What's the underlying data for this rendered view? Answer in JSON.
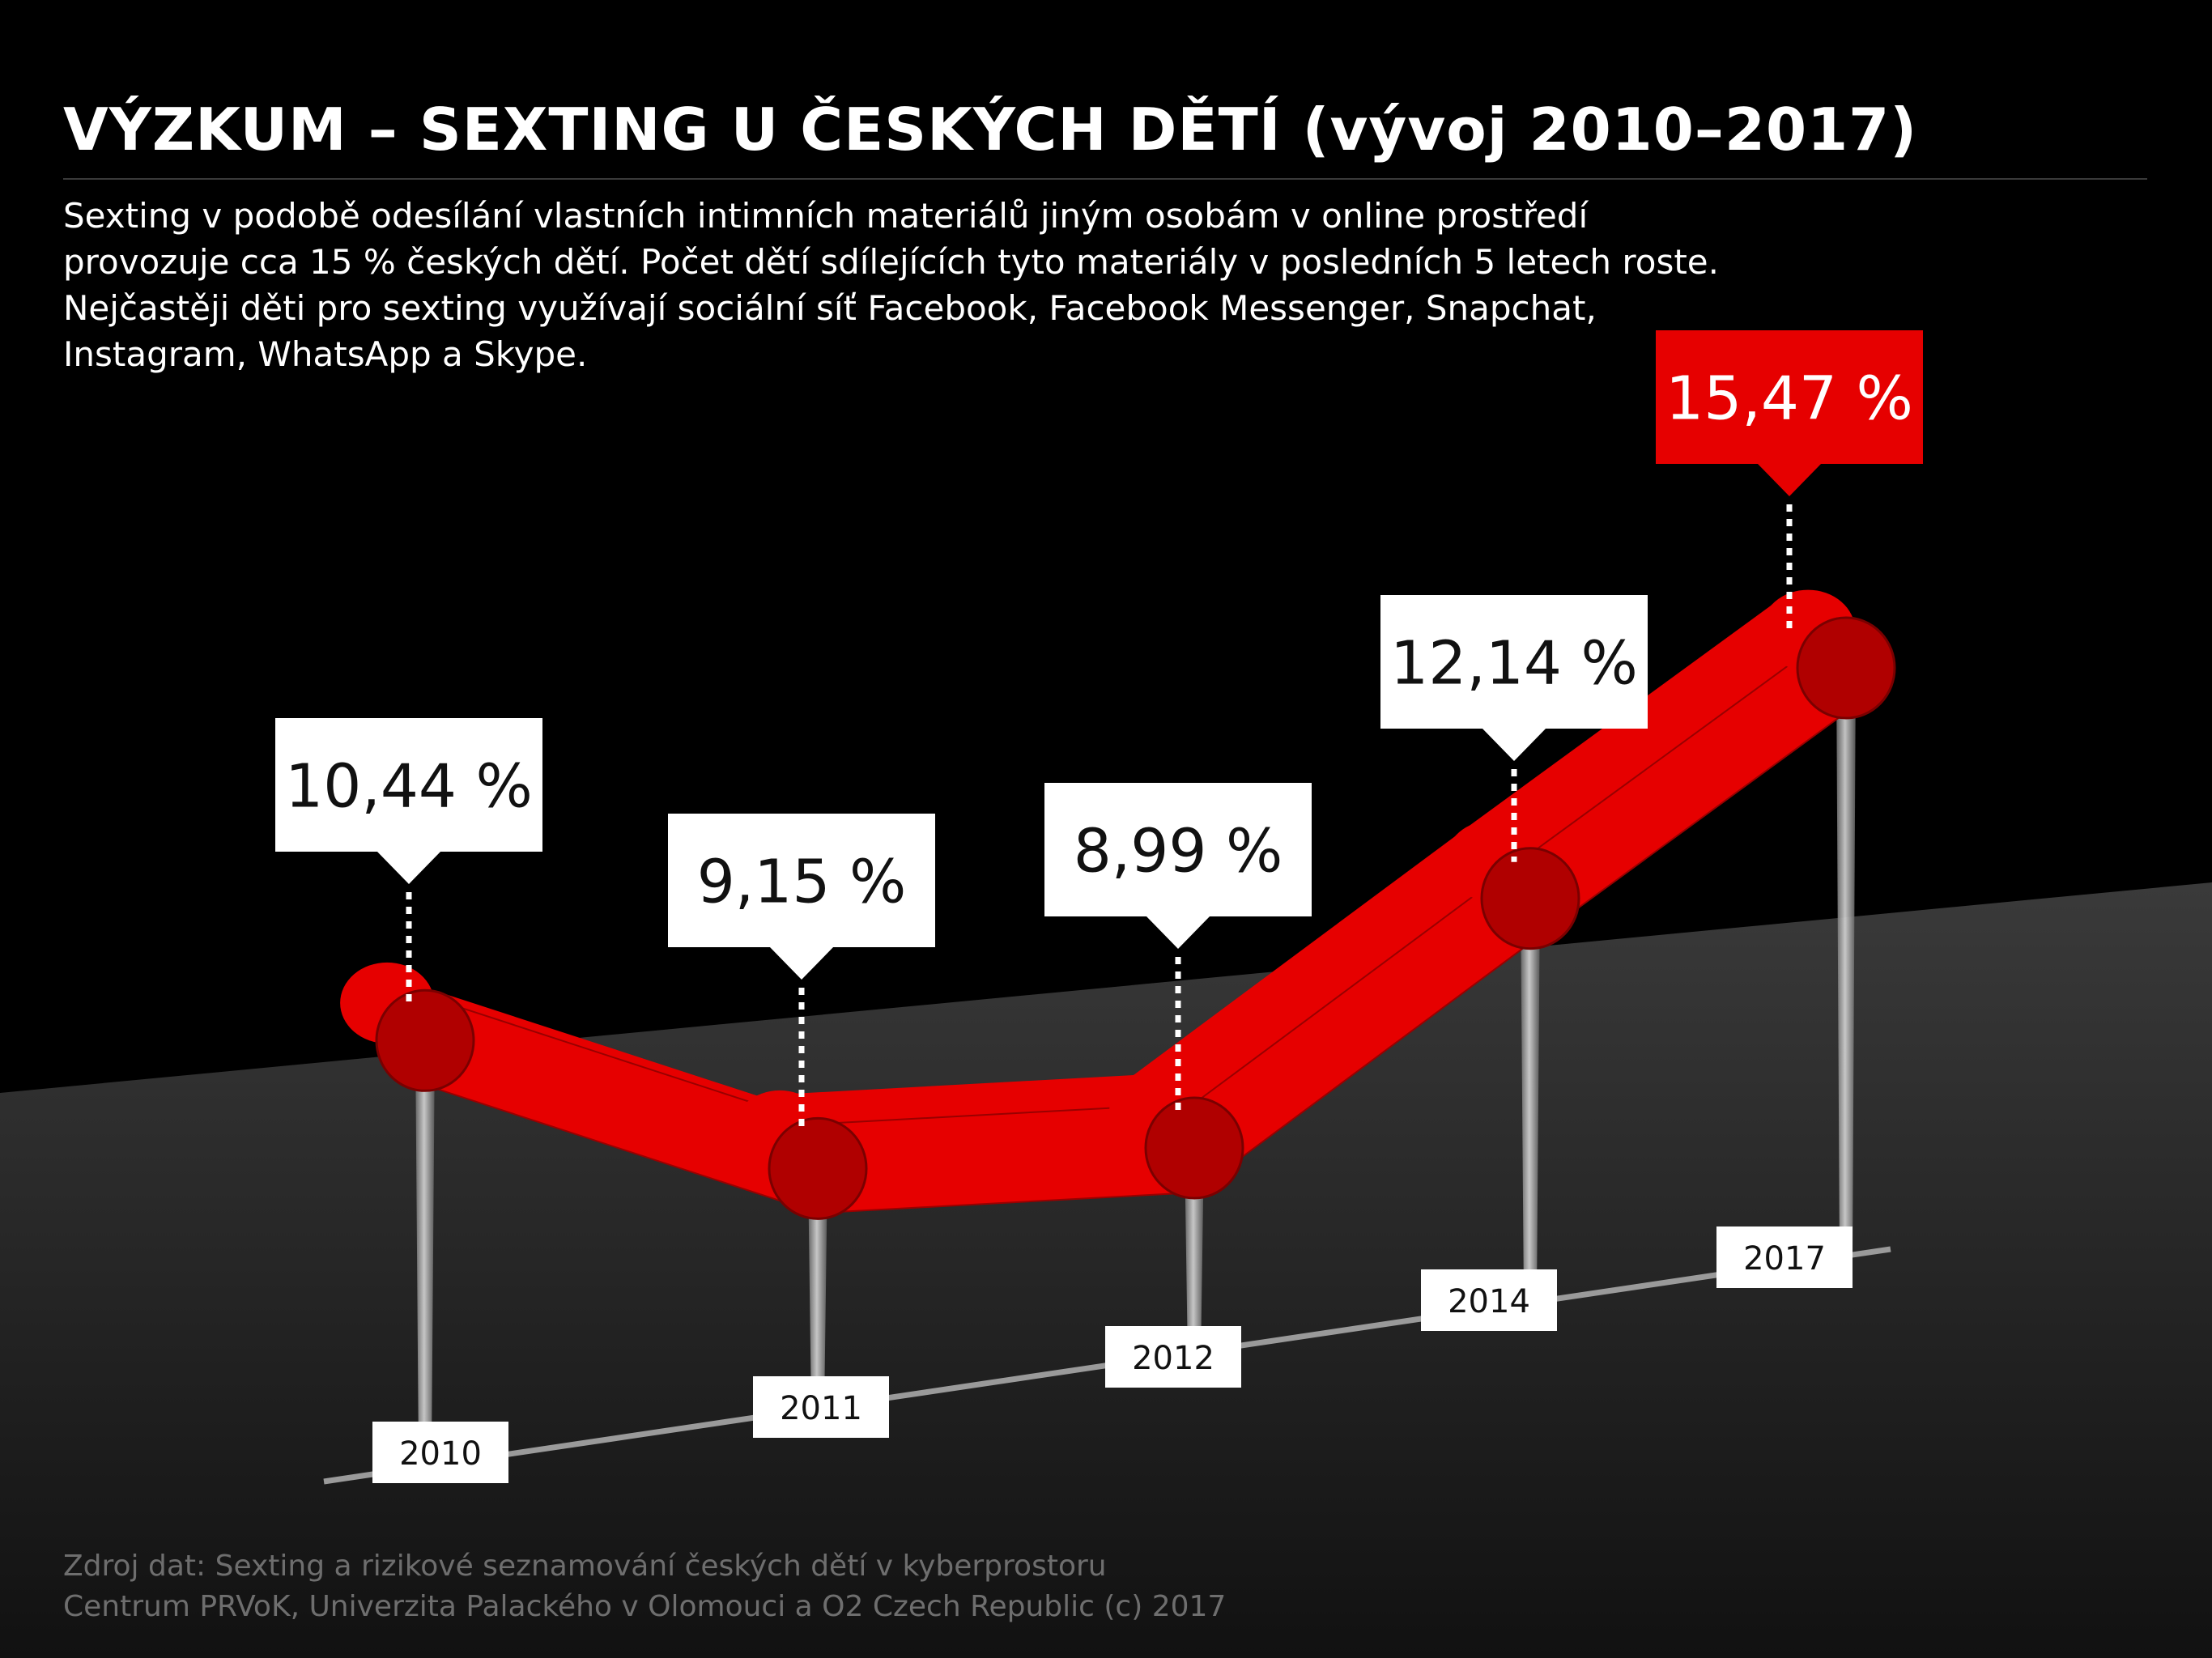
{
  "title": "VÝZKUM – SEXTING U ČESKÝCH DĚTÍ (vývoj 2010–2017)",
  "subtitle_lines": [
    "Sexting v podobě odesílání vlastních intimních materiálů jiným osobám v online prostředí",
    "provozuje cca 15 % českých dětí. Počet dětí sdílejících tyto materiály v posledních 5 letech roste.",
    "Nejčastěji děti pro sexting využívají sociální síť Facebook, Facebook Messenger, Snapchat,",
    "Instagram, WhatsApp a Skype."
  ],
  "source_lines": [
    "Zdroj dat: Sexting a rizikové seznamování českých dětí v kyberprostoru",
    "Centrum PRVoK, Univerzita Palackého v Olomouci a O2 Czech Republic (c) 2017"
  ],
  "colors": {
    "line": "#e60000",
    "line_dark": "#b00000",
    "highlight_box": "#e60000",
    "box": "#ffffff",
    "axis": "#9a9a9a"
  },
  "chart_data": {
    "type": "line",
    "x": [
      "2010",
      "2011",
      "2012",
      "2014",
      "2017"
    ],
    "values": [
      10.44,
      9.15,
      8.99,
      12.14,
      15.47
    ],
    "value_labels": [
      "10,44 %",
      "9,15 %",
      "8,99 %",
      "12,14 %",
      "15,47 %"
    ],
    "highlight_index": 4,
    "unit": "%"
  }
}
